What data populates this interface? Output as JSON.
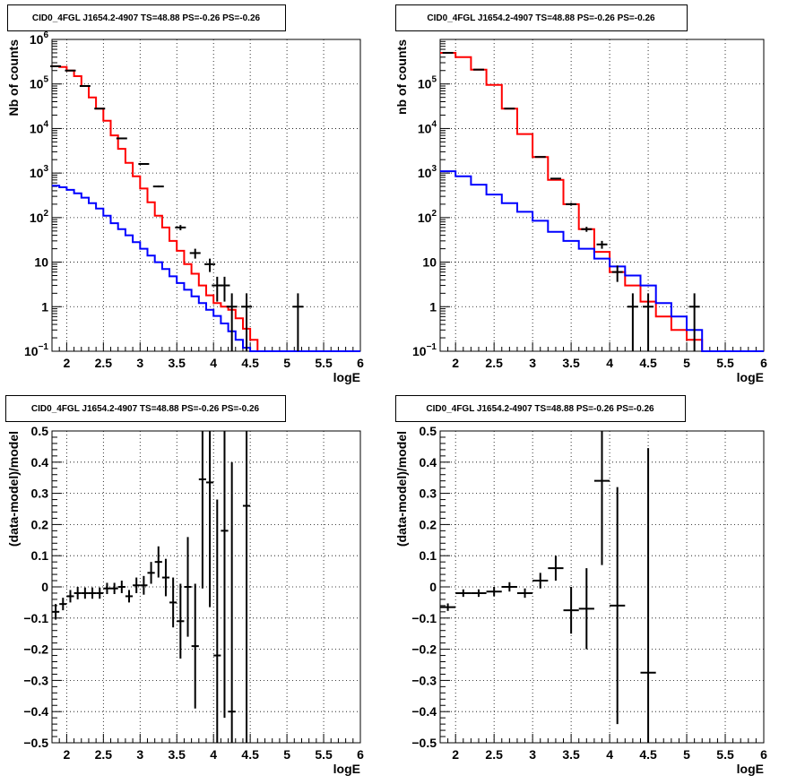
{
  "chart_data": [
    {
      "type": "line",
      "title": "CID0_4FGL J1654.2-4907 TS=48.88 PS=-0.26 PS=-0.26",
      "xlabel": "logE",
      "ylabel": "Nb of counts",
      "xlim": [
        1.8,
        6.0
      ],
      "ylim": [
        0.1,
        1000000
      ],
      "yscale": "log",
      "grid": true,
      "xticks": [
        "2",
        "2.5",
        "3",
        "3.5",
        "4",
        "4.5",
        "5",
        "5.5",
        "6"
      ],
      "yticks": [
        {
          "v": 0.1,
          "base": "10",
          "exp": "−1"
        },
        {
          "v": 1,
          "label": "1"
        },
        {
          "v": 10,
          "label": "10"
        },
        {
          "v": 100,
          "base": "10",
          "exp": "2"
        },
        {
          "v": 1000,
          "base": "10",
          "exp": "3"
        },
        {
          "v": 10000,
          "base": "10",
          "exp": "4"
        },
        {
          "v": 100000,
          "base": "10",
          "exp": "5"
        },
        {
          "v": 1000000,
          "base": "10",
          "exp": "6"
        }
      ],
      "bin_edges": [
        1.8,
        1.9,
        2.0,
        2.1,
        2.2,
        2.3,
        2.4,
        2.5,
        2.6,
        2.7,
        2.8,
        2.9,
        3.0,
        3.1,
        3.2,
        3.3,
        3.4,
        3.5,
        3.6,
        3.7,
        3.8,
        3.9,
        4.0,
        4.1,
        4.2,
        4.3,
        4.4,
        4.5,
        4.6,
        4.7,
        4.8,
        4.9,
        5.0,
        5.1,
        5.2,
        5.3,
        5.4,
        5.5,
        5.6,
        5.7,
        5.8,
        5.9,
        6.0
      ],
      "series": [
        {
          "color": "#ff0000",
          "style": "step",
          "values": [
            250000,
            240000,
            200000,
            150000,
            90000,
            50000,
            28000,
            15000,
            7000,
            3500,
            1700,
            850,
            450,
            220,
            110,
            60,
            30,
            18,
            9,
            5.5,
            3,
            1.8,
            1.2,
            1.0,
            0.85,
            0.55,
            0.32,
            0.18,
            0.1,
            0.1,
            0.1,
            0.1,
            0.1,
            0.1,
            0.1,
            0.1,
            0.1,
            0.1,
            0.1,
            0.1,
            0.1,
            0.1
          ]
        },
        {
          "color": "#0000ff",
          "style": "step",
          "values": [
            520,
            480,
            420,
            350,
            280,
            210,
            160,
            110,
            75,
            55,
            40,
            28,
            20,
            14,
            10,
            7,
            4.8,
            3.4,
            2.4,
            1.7,
            1.2,
            0.85,
            0.62,
            0.42,
            0.28,
            0.18,
            0.12,
            0.1,
            0.1,
            0.1,
            0.1,
            0.1,
            0.1,
            0.1,
            0.1,
            0.1,
            0.1,
            0.1,
            0.1,
            0.1,
            0.1,
            0.1
          ]
        }
      ],
      "data_points": [
        {
          "x": 1.85,
          "y": 250000,
          "lo": 248000,
          "hi": 252000
        },
        {
          "x": 2.05,
          "y": 200000,
          "lo": 198000,
          "hi": 202000
        },
        {
          "x": 2.25,
          "y": 90000,
          "lo": 89000,
          "hi": 91000
        },
        {
          "x": 2.45,
          "y": 28000,
          "lo": 27500,
          "hi": 28500
        },
        {
          "x": 2.75,
          "y": 6000,
          "lo": 5900,
          "hi": 6100
        },
        {
          "x": 3.05,
          "y": 1600,
          "lo": 1560,
          "hi": 1640
        },
        {
          "x": 3.25,
          "y": 500,
          "lo": 478,
          "hi": 522
        },
        {
          "x": 3.55,
          "y": 60,
          "lo": 52,
          "hi": 68
        },
        {
          "x": 3.75,
          "y": 16,
          "lo": 12,
          "hi": 20
        },
        {
          "x": 3.95,
          "y": 9,
          "lo": 6,
          "hi": 12
        },
        {
          "x": 4.05,
          "y": 3,
          "lo": 1.3,
          "hi": 4.7
        },
        {
          "x": 4.15,
          "y": 3,
          "lo": 1.3,
          "hi": 4.7
        },
        {
          "x": 4.25,
          "y": 1,
          "lo": 0.1,
          "hi": 2
        },
        {
          "x": 4.45,
          "y": 1,
          "lo": 0.1,
          "hi": 2
        },
        {
          "x": 5.15,
          "y": 1,
          "lo": 0.1,
          "hi": 2
        }
      ]
    },
    {
      "type": "line",
      "title": "CID0_4FGL J1654.2-4907 TS=48.88 PS=-0.26 PS=-0.26",
      "xlabel": "logE",
      "ylabel": "nb of counts",
      "xlim": [
        1.8,
        6.0
      ],
      "ylim": [
        0.1,
        1000000
      ],
      "yscale": "log",
      "grid": true,
      "xticks": [
        "2",
        "2.5",
        "3",
        "3.5",
        "4",
        "4.5",
        "5",
        "5.5",
        "6"
      ],
      "yticks": [
        {
          "v": 0.1,
          "base": "10",
          "exp": "−1"
        },
        {
          "v": 1,
          "label": "1"
        },
        {
          "v": 10,
          "label": "10"
        },
        {
          "v": 100,
          "base": "10",
          "exp": "2"
        },
        {
          "v": 1000,
          "base": "10",
          "exp": "3"
        },
        {
          "v": 10000,
          "base": "10",
          "exp": "4"
        },
        {
          "v": 100000,
          "base": "10",
          "exp": "5"
        }
      ],
      "bin_edges": [
        1.8,
        2.0,
        2.2,
        2.4,
        2.6,
        2.8,
        3.0,
        3.2,
        3.4,
        3.6,
        3.8,
        4.0,
        4.2,
        4.4,
        4.6,
        4.8,
        5.0,
        5.2,
        5.4,
        5.6,
        5.8,
        6.0
      ],
      "series": [
        {
          "color": "#ff0000",
          "style": "step",
          "values": [
            500000,
            400000,
            210000,
            95000,
            28000,
            7500,
            2300,
            700,
            200,
            55,
            17,
            6,
            3,
            1.3,
            0.6,
            0.3,
            0.18,
            0.1,
            0.1,
            0.1,
            0.1
          ]
        },
        {
          "color": "#0000ff",
          "style": "step",
          "values": [
            1100,
            850,
            550,
            330,
            210,
            135,
            85,
            48,
            30,
            20,
            12,
            8,
            5,
            3,
            1.2,
            0.6,
            0.3,
            0.1,
            0.1,
            0.1,
            0.1
          ]
        }
      ],
      "data_points": [
        {
          "x": 1.9,
          "y": 500000,
          "lo": 496000,
          "hi": 504000
        },
        {
          "x": 2.3,
          "y": 210000,
          "lo": 208000,
          "hi": 212000
        },
        {
          "x": 2.7,
          "y": 28000,
          "lo": 27500,
          "hi": 28500
        },
        {
          "x": 3.1,
          "y": 2300,
          "lo": 2250,
          "hi": 2350
        },
        {
          "x": 3.3,
          "y": 750,
          "lo": 720,
          "hi": 780
        },
        {
          "x": 3.5,
          "y": 200,
          "lo": 185,
          "hi": 215
        },
        {
          "x": 3.7,
          "y": 55,
          "lo": 48,
          "hi": 62
        },
        {
          "x": 3.9,
          "y": 25,
          "lo": 20,
          "hi": 30
        },
        {
          "x": 4.1,
          "y": 6,
          "lo": 3.6,
          "hi": 8.4
        },
        {
          "x": 4.3,
          "y": 1,
          "lo": 0.1,
          "hi": 2
        },
        {
          "x": 4.5,
          "y": 1,
          "lo": 0.1,
          "hi": 2
        },
        {
          "x": 5.1,
          "y": 1,
          "lo": 0.1,
          "hi": 2
        }
      ]
    },
    {
      "type": "scatter",
      "title": "CID0_4FGL J1654.2-4907 TS=48.88 PS=-0.26 PS=-0.26",
      "xlabel": "logE",
      "ylabel": "(data-model)/model",
      "xlim": [
        1.8,
        6.0
      ],
      "ylim": [
        -0.5,
        0.5
      ],
      "yscale": "linear",
      "grid": true,
      "xticks": [
        "2",
        "2.5",
        "3",
        "3.5",
        "4",
        "4.5",
        "5",
        "5.5",
        "6"
      ],
      "yticks": [
        {
          "v": -0.5,
          "label": "−0.5"
        },
        {
          "v": -0.4,
          "label": "−0.4"
        },
        {
          "v": -0.3,
          "label": "−0.3"
        },
        {
          "v": -0.2,
          "label": "−0.2"
        },
        {
          "v": -0.1,
          "label": "−0.1"
        },
        {
          "v": 0,
          "label": "0"
        },
        {
          "v": 0.1,
          "label": "0.1"
        },
        {
          "v": 0.2,
          "label": "0.2"
        },
        {
          "v": 0.3,
          "label": "0.3"
        },
        {
          "v": 0.4,
          "label": "0.4"
        },
        {
          "v": 0.5,
          "label": "0.5"
        }
      ],
      "data_points": [
        {
          "x": 1.85,
          "y": -0.08,
          "err": 0.025,
          "xw": 0.05
        },
        {
          "x": 1.95,
          "y": -0.055,
          "err": 0.02,
          "xw": 0.05
        },
        {
          "x": 2.05,
          "y": -0.03,
          "err": 0.02,
          "xw": 0.05
        },
        {
          "x": 2.15,
          "y": -0.02,
          "err": 0.02,
          "xw": 0.05
        },
        {
          "x": 2.25,
          "y": -0.02,
          "err": 0.018,
          "xw": 0.05
        },
        {
          "x": 2.35,
          "y": -0.02,
          "err": 0.018,
          "xw": 0.05
        },
        {
          "x": 2.45,
          "y": -0.02,
          "err": 0.018,
          "xw": 0.05
        },
        {
          "x": 2.55,
          "y": -0.005,
          "err": 0.018,
          "xw": 0.05
        },
        {
          "x": 2.65,
          "y": -0.005,
          "err": 0.018,
          "xw": 0.05
        },
        {
          "x": 2.75,
          "y": 0.0,
          "err": 0.02,
          "xw": 0.05
        },
        {
          "x": 2.85,
          "y": -0.03,
          "err": 0.02,
          "xw": 0.05
        },
        {
          "x": 2.95,
          "y": 0.005,
          "err": 0.025,
          "xw": 0.05
        },
        {
          "x": 3.05,
          "y": 0.005,
          "err": 0.03,
          "xw": 0.05
        },
        {
          "x": 3.15,
          "y": 0.045,
          "err": 0.035,
          "xw": 0.05
        },
        {
          "x": 3.25,
          "y": 0.08,
          "err": 0.05,
          "xw": 0.05
        },
        {
          "x": 3.35,
          "y": 0.03,
          "err": 0.06,
          "xw": 0.05
        },
        {
          "x": 3.45,
          "y": -0.05,
          "err": 0.08,
          "xw": 0.05
        },
        {
          "x": 3.55,
          "y": -0.11,
          "err": 0.12,
          "xw": 0.05
        },
        {
          "x": 3.65,
          "y": 0.0,
          "err": 0.16,
          "xw": 0.05
        },
        {
          "x": 3.75,
          "y": -0.19,
          "err": 0.2,
          "xw": 0.05
        },
        {
          "x": 3.85,
          "y": 0.345,
          "err": 0.35,
          "xw": 0.05
        },
        {
          "x": 3.95,
          "y": 0.335,
          "err": 0.4,
          "xw": 0.05
        },
        {
          "x": 4.05,
          "y": -0.22,
          "err": 0.5,
          "xw": 0.05
        },
        {
          "x": 4.15,
          "y": 0.18,
          "err": 0.6,
          "xw": 0.05
        },
        {
          "x": 4.25,
          "y": -0.4,
          "err": 0.8,
          "xw": 0.05
        },
        {
          "x": 4.45,
          "y": 0.26,
          "err": 0.9,
          "xw": 0.05
        }
      ]
    },
    {
      "type": "scatter",
      "title": "CID0_4FGL J1654.2-4907 TS=48.88 PS=-0.26 PS=-0.26",
      "xlabel": "logE",
      "ylabel": "(data-model)/model",
      "xlim": [
        1.8,
        6.0
      ],
      "ylim": [
        -0.5,
        0.5
      ],
      "yscale": "linear",
      "grid": true,
      "xticks": [
        "2",
        "2.5",
        "3",
        "3.5",
        "4",
        "4.5",
        "5",
        "5.5",
        "6"
      ],
      "yticks": [
        {
          "v": -0.5,
          "label": "−0.5"
        },
        {
          "v": -0.4,
          "label": "−0.4"
        },
        {
          "v": -0.3,
          "label": "−0.3"
        },
        {
          "v": -0.2,
          "label": "−0.2"
        },
        {
          "v": -0.1,
          "label": "−0.1"
        },
        {
          "v": 0,
          "label": "0"
        },
        {
          "v": 0.1,
          "label": "0.1"
        },
        {
          "v": 0.2,
          "label": "0.2"
        },
        {
          "v": 0.3,
          "label": "0.3"
        },
        {
          "v": 0.4,
          "label": "0.4"
        },
        {
          "v": 0.5,
          "label": "0.5"
        }
      ],
      "data_points": [
        {
          "x": 1.9,
          "y": -0.065,
          "err": 0.012,
          "xw": 0.1
        },
        {
          "x": 2.1,
          "y": -0.02,
          "err": 0.012,
          "xw": 0.1
        },
        {
          "x": 2.3,
          "y": -0.02,
          "err": 0.012,
          "xw": 0.1
        },
        {
          "x": 2.5,
          "y": -0.015,
          "err": 0.015,
          "xw": 0.1
        },
        {
          "x": 2.7,
          "y": 0.0,
          "err": 0.015,
          "xw": 0.1
        },
        {
          "x": 2.9,
          "y": -0.02,
          "err": 0.015,
          "xw": 0.1
        },
        {
          "x": 3.1,
          "y": 0.02,
          "err": 0.025,
          "xw": 0.1
        },
        {
          "x": 3.3,
          "y": 0.06,
          "err": 0.04,
          "xw": 0.1
        },
        {
          "x": 3.5,
          "y": -0.075,
          "err": 0.075,
          "xw": 0.1
        },
        {
          "x": 3.7,
          "y": -0.07,
          "err": 0.13,
          "xw": 0.1
        },
        {
          "x": 3.9,
          "y": 0.34,
          "err": 0.27,
          "xw": 0.1
        },
        {
          "x": 4.1,
          "y": -0.06,
          "err": 0.38,
          "xw": 0.1
        },
        {
          "x": 4.5,
          "y": -0.275,
          "err": 0.72,
          "xw": 0.1
        }
      ]
    }
  ]
}
